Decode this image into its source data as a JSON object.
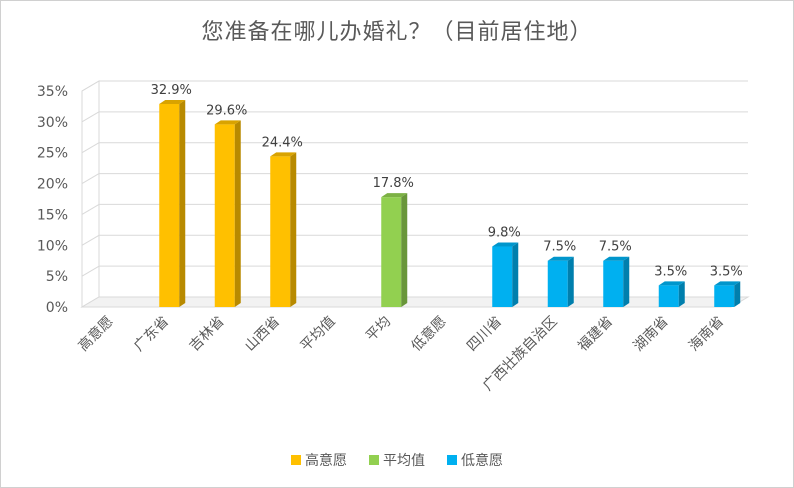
{
  "chart_data": {
    "type": "bar",
    "title": "您准备在哪儿办婚礼？（目前居住地）",
    "categories": [
      "高意愿",
      "广东省",
      "吉林省",
      "山西省",
      "平均值",
      "平均",
      "低意愿",
      "四川省",
      "广西壮族自治区",
      "福建省",
      "湖南省",
      "海南省"
    ],
    "values": [
      null,
      32.9,
      29.6,
      24.4,
      null,
      17.8,
      null,
      9.8,
      7.5,
      7.5,
      3.5,
      3.5
    ],
    "data_labels": [
      "",
      "32.9%",
      "29.6%",
      "24.4%",
      "",
      "17.8%",
      "",
      "9.8%",
      "7.5%",
      "7.5%",
      "3.5%",
      "3.5%"
    ],
    "groups": [
      "高意愿",
      "高意愿",
      "高意愿",
      "高意愿",
      "平均值",
      "平均值",
      "低意愿",
      "低意愿",
      "低意愿",
      "低意愿",
      "低意愿",
      "低意愿"
    ],
    "yticks": [
      "0%",
      "5%",
      "10%",
      "15%",
      "20%",
      "25%",
      "30%",
      "35%"
    ],
    "ylim": [
      0,
      35
    ],
    "grid": true,
    "legend": [
      {
        "name": "高意愿",
        "color": "#FFC000"
      },
      {
        "name": "平均值",
        "color": "#92D050"
      },
      {
        "name": "低意愿",
        "color": "#00B0F0"
      }
    ],
    "legend_position": "bottom"
  }
}
